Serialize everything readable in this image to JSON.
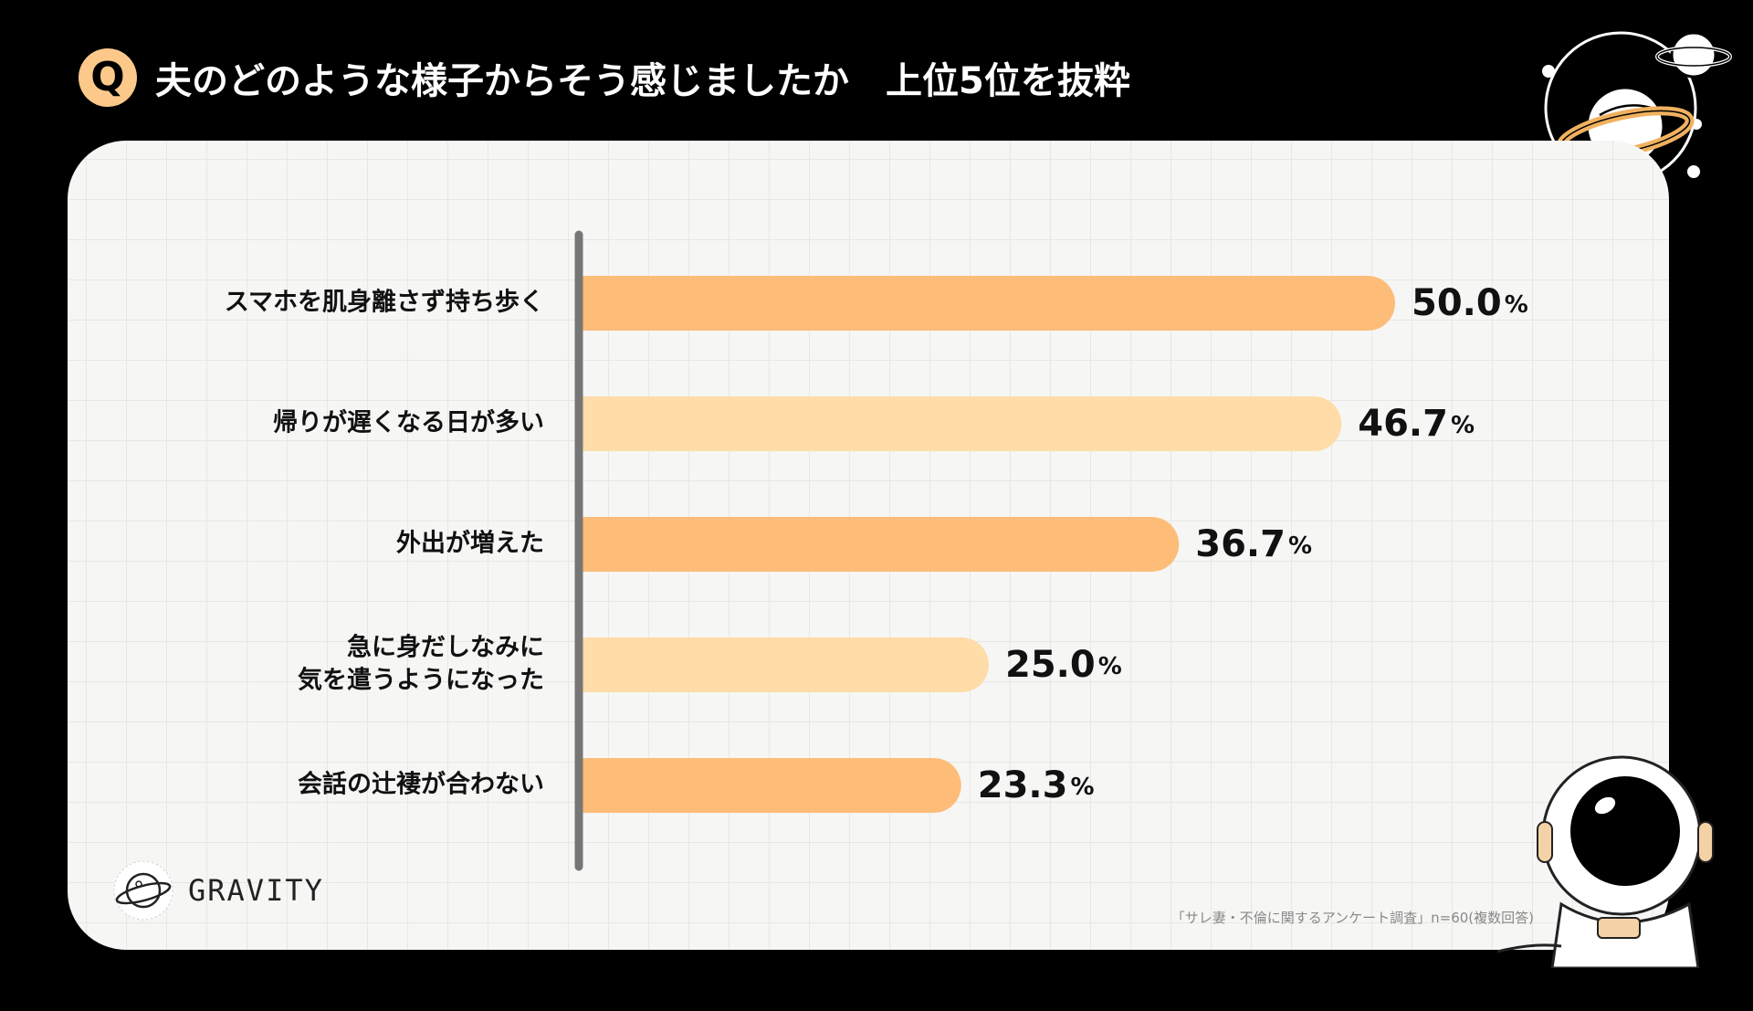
{
  "header": {
    "badge": "Q",
    "title": "夫のどのような様子からそう感じましたか　上位5位を抜粋"
  },
  "colors": {
    "bar_dark": "#FDBD79",
    "bar_light": "#FFDCA8",
    "axis": "#767676",
    "text": "#111111"
  },
  "chart_data": {
    "type": "bar",
    "orientation": "horizontal",
    "categories": [
      [
        "スマホを肌身離さず持ち歩く"
      ],
      [
        "帰りが遅くなる日が多い"
      ],
      [
        "外出が増えた"
      ],
      [
        "急に身だしなみに",
        "気を遣うようになった"
      ],
      [
        "会話の辻褄が合わない"
      ]
    ],
    "values": [
      50.0,
      46.7,
      36.7,
      25.0,
      23.3
    ],
    "value_labels": [
      "50.0",
      "46.7",
      "36.7",
      "25.0",
      "23.3"
    ],
    "unit": "%",
    "bar_colors": [
      "#FDBD79",
      "#FFDCA8",
      "#FDBD79",
      "#FFDCA8",
      "#FDBD79"
    ]
  },
  "logo": {
    "name": "GRAVITY"
  },
  "source": "「サレ妻・不倫に関するアンケート調査」n=60(複数回答)"
}
